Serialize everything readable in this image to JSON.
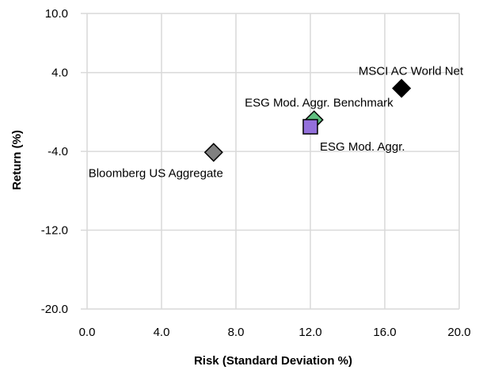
{
  "chart_data": {
    "type": "scatter",
    "xlabel": "Risk (Standard Deviation %)",
    "ylabel": "Return (%)",
    "xlim": [
      0,
      20
    ],
    "ylim": [
      -20,
      10
    ],
    "x_ticks": [
      "0.0",
      "4.0",
      "8.0",
      "12.0",
      "16.0",
      "20.0"
    ],
    "y_ticks": [
      "10.0",
      "4.0",
      "-4.0",
      "-12.0",
      "-20.0"
    ],
    "grid": true,
    "points": [
      {
        "name": "MSCI AC World Net",
        "x": 16.9,
        "y": 2.4,
        "marker": "diamond",
        "color": "#000000",
        "label_pos": "above"
      },
      {
        "name": "ESG Mod. Aggr. Benchmark",
        "x": 12.2,
        "y": -0.8,
        "marker": "diamond",
        "color": "#5fbf7f",
        "label_pos": "above"
      },
      {
        "name": "ESG Mod. Aggr.",
        "x": 12.0,
        "y": -1.5,
        "marker": "square",
        "color": "#9370db",
        "label_pos": "below-right"
      },
      {
        "name": "Bloomberg US Aggregate",
        "x": 6.8,
        "y": -4.1,
        "marker": "diamond",
        "color": "#808080",
        "label_pos": "below-left"
      }
    ]
  }
}
